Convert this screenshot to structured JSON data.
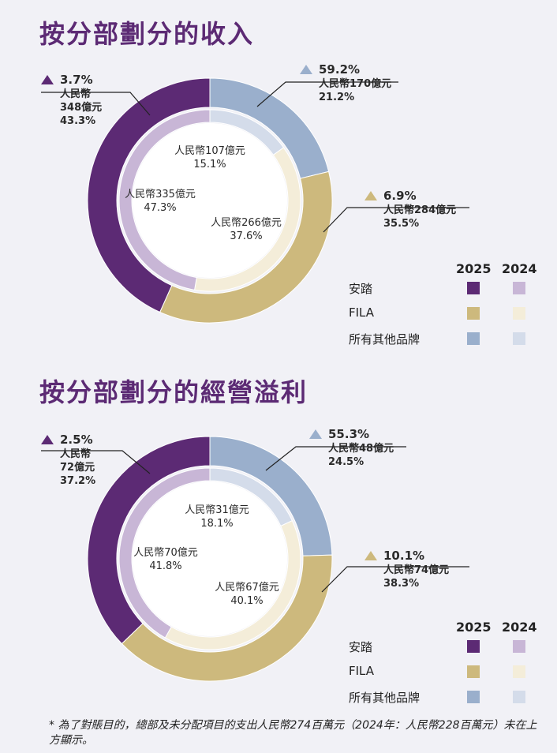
{
  "colors": {
    "anta_2025": "#5c2a74",
    "anta_2024": "#c8b6d6",
    "fila_2025": "#cdb97d",
    "fila_2024": "#f4edd9",
    "others_2025": "#9aafcc",
    "others_2024": "#d4dcea"
  },
  "legend": {
    "year_2025": "2025",
    "year_2024": "2024",
    "items": [
      "安踏",
      "FILA",
      "所有其他品牌"
    ]
  },
  "revenue": {
    "title": "按分部劃分的收入",
    "anta": {
      "change": "3.7%",
      "line1": "人民幣",
      "line2": "348億元",
      "share": "43.3%",
      "inner_amount": "人民幣335億元",
      "inner_share": "47.3%"
    },
    "others": {
      "change": "59.2%",
      "line1": "人民幣170億元",
      "share": "21.2%",
      "inner_amount": "人民幣107億元",
      "inner_share": "15.1%"
    },
    "fila": {
      "change": "6.9%",
      "line1": "人民幣284億元",
      "share": "35.5%",
      "inner_amount": "人民幣266億元",
      "inner_share": "37.6%"
    }
  },
  "profit": {
    "title": "按分部劃分的經營溢利",
    "anta": {
      "change": "2.5%",
      "line1": "人民幣",
      "line2": "72億元",
      "share": "37.2%",
      "inner_amount": "人民幣70億元",
      "inner_share": "41.8%"
    },
    "others": {
      "change": "55.3%",
      "line1": "人民幣48億元",
      "share": "24.5%",
      "inner_amount": "人民幣31億元",
      "inner_share": "18.1%"
    },
    "fila": {
      "change": "10.1%",
      "line1": "人民幣74億元",
      "share": "38.3%",
      "inner_amount": "人民幣67億元",
      "inner_share": "40.1%"
    }
  },
  "footnote": "* 為了對賬目的，總部及未分配項目的支出人民幣274百萬元（2024年：人民幣228百萬元）未在上方顯示。",
  "chart_data": [
    {
      "type": "pie",
      "title": "按分部劃分的收入",
      "categories": [
        "安踏",
        "FILA",
        "所有其他品牌"
      ],
      "series": [
        {
          "name": "2025",
          "values": [
            43.3,
            35.5,
            21.2
          ],
          "amounts_rmb_100m": [
            348,
            284,
            170
          ],
          "growth_pct": [
            3.7,
            6.9,
            59.2
          ]
        },
        {
          "name": "2024",
          "values": [
            47.3,
            37.6,
            15.1
          ],
          "amounts_rmb_100m": [
            335,
            266,
            107
          ]
        }
      ]
    },
    {
      "type": "pie",
      "title": "按分部劃分的經營溢利",
      "categories": [
        "安踏",
        "FILA",
        "所有其他品牌"
      ],
      "series": [
        {
          "name": "2025",
          "values": [
            37.2,
            38.3,
            24.5
          ],
          "amounts_rmb_100m": [
            72,
            74,
            48
          ],
          "growth_pct": [
            2.5,
            10.1,
            55.3
          ]
        },
        {
          "name": "2024",
          "values": [
            41.8,
            40.1,
            18.1
          ],
          "amounts_rmb_100m": [
            70,
            67,
            31
          ]
        }
      ]
    }
  ]
}
